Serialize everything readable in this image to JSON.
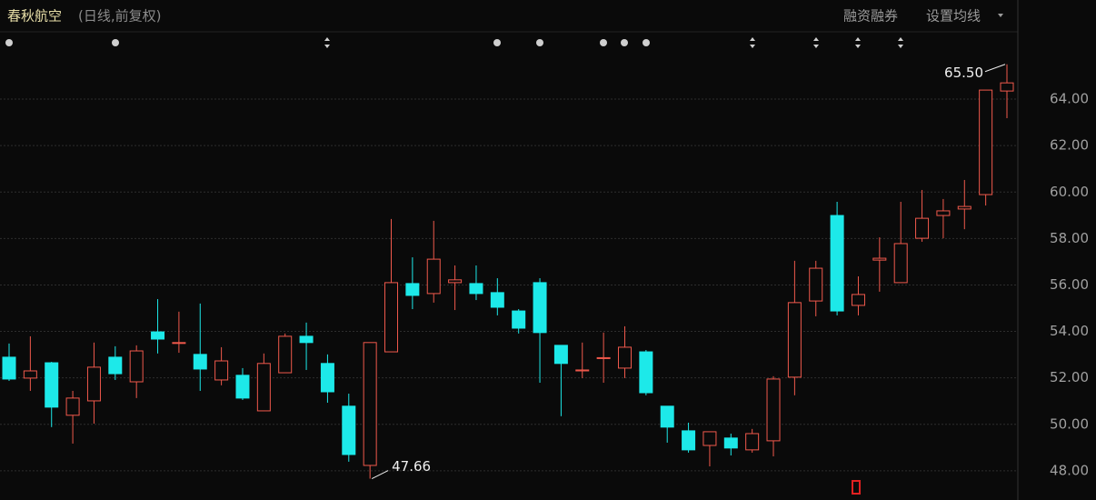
{
  "header": {
    "title": "春秋航空",
    "subtitle": "(日线,前复权)",
    "menu": [
      "融资融券",
      "设置均线"
    ]
  },
  "chart_data": {
    "type": "candlestick",
    "up_color": "#f0594c",
    "down_color": "#1de9e9",
    "grid": true,
    "ylim": [
      46.82,
      66.82
    ],
    "yticks": [
      {
        "value": 48,
        "label": "48.00"
      },
      {
        "value": 50,
        "label": "50.00"
      },
      {
        "value": 52,
        "label": "52.00"
      },
      {
        "value": 54,
        "label": "54.00"
      },
      {
        "value": 56,
        "label": "56.00"
      },
      {
        "value": 58,
        "label": "58.00"
      },
      {
        "value": 60,
        "label": "60.00"
      },
      {
        "value": 62,
        "label": "62.00"
      },
      {
        "value": 64,
        "label": "64.00"
      }
    ],
    "open": [
      52.89,
      51.99,
      52.65,
      50.39,
      51.01,
      52.89,
      51.83,
      53.98,
      53.5,
      53.01,
      51.91,
      52.11,
      50.58,
      52.22,
      53.79,
      52.62,
      50.78,
      48.23,
      53.12,
      56.06,
      55.63,
      56.1,
      56.06,
      55.67,
      54.88,
      56.1,
      53.4,
      52.3,
      52.83,
      52.42,
      53.12,
      50.78,
      49.72,
      49.09,
      49.41,
      48.9,
      49.29,
      52.03,
      55.31,
      58.99,
      55.12,
      57.07,
      56.1,
      58.01,
      58.99,
      59.27,
      59.89,
      64.35
    ],
    "high": [
      53.48,
      53.79,
      52.69,
      51.44,
      53.52,
      53.36,
      53.4,
      55.39,
      54.85,
      55.2,
      53.32,
      52.42,
      53.05,
      53.91,
      54.38,
      53.01,
      51.32,
      53.52,
      58.84,
      57.19,
      58.76,
      56.84,
      56.84,
      56.29,
      54.96,
      56.29,
      53.4,
      53.52,
      53.95,
      54.22,
      53.2,
      50.78,
      50.07,
      49.68,
      49.6,
      49.8,
      52.07,
      57.04,
      57.04,
      59.58,
      56.37,
      58.05,
      59.58,
      60.09,
      59.7,
      60.52,
      64.39,
      65.5
    ],
    "low": [
      51.87,
      51.44,
      49.88,
      49.17,
      50.03,
      51.91,
      51.13,
      53.05,
      53.08,
      51.44,
      51.68,
      51.05,
      50.58,
      52.22,
      52.34,
      50.93,
      48.39,
      47.66,
      53.12,
      54.96,
      55.24,
      54.92,
      55.35,
      54.69,
      53.91,
      51.79,
      50.35,
      51.99,
      51.79,
      51.99,
      51.25,
      49.21,
      48.78,
      48.19,
      48.66,
      48.78,
      48.62,
      51.25,
      54.65,
      54.69,
      54.69,
      55.71,
      56.1,
      57.86,
      58.01,
      58.4,
      59.42,
      63.18
    ],
    "close": [
      51.95,
      52.3,
      50.74,
      51.13,
      52.46,
      52.18,
      53.16,
      53.67,
      53.52,
      52.38,
      52.73,
      51.13,
      52.62,
      53.79,
      53.52,
      51.4,
      48.7,
      53.52,
      56.1,
      55.55,
      57.11,
      56.22,
      55.63,
      55.04,
      54.14,
      53.95,
      52.62,
      52.34,
      52.87,
      53.32,
      51.36,
      49.88,
      48.9,
      49.68,
      48.98,
      49.6,
      51.95,
      55.24,
      56.72,
      54.88,
      55.59,
      57.15,
      57.78,
      58.87,
      59.19,
      59.38,
      64.39,
      64.7
    ],
    "annotations": [
      {
        "value": 65.5,
        "label": "65.50"
      },
      {
        "value": 47.66,
        "label": "47.66"
      }
    ]
  }
}
